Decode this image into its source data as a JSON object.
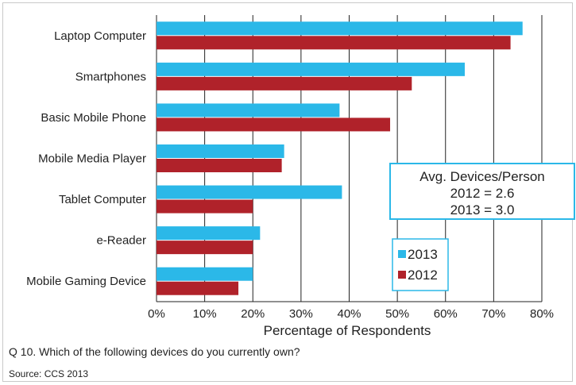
{
  "chart_data": {
    "type": "bar",
    "orientation": "horizontal",
    "categories": [
      "Laptop Computer",
      "Smartphones",
      "Basic Mobile Phone",
      "Mobile Media Player",
      "Tablet Computer",
      "e-Reader",
      "Mobile Gaming Device"
    ],
    "series": [
      {
        "name": "2013",
        "color": "#2bb8e8",
        "values": [
          76,
          64,
          38,
          26.5,
          38.5,
          21.5,
          20
        ]
      },
      {
        "name": "2012",
        "color": "#b0222a",
        "values": [
          73.5,
          53,
          48.5,
          26,
          20,
          20,
          17
        ]
      }
    ],
    "xlabel": "Percentage of Respondents",
    "xlim": [
      0,
      80
    ],
    "xticks": [
      "0%",
      "10%",
      "20%",
      "30%",
      "40%",
      "50%",
      "60%",
      "70%",
      "80%"
    ],
    "grid": true,
    "legend": "center-right",
    "annotation": {
      "title": "Avg. Devices/Person",
      "lines": [
        "2012 = 2.6",
        "2013 = 3.0"
      ],
      "border_color": "#2bb8e8"
    }
  },
  "footer": {
    "question": "Q 10. Which of the following devices do you currently own?",
    "source": "Source: CCS 2013"
  }
}
